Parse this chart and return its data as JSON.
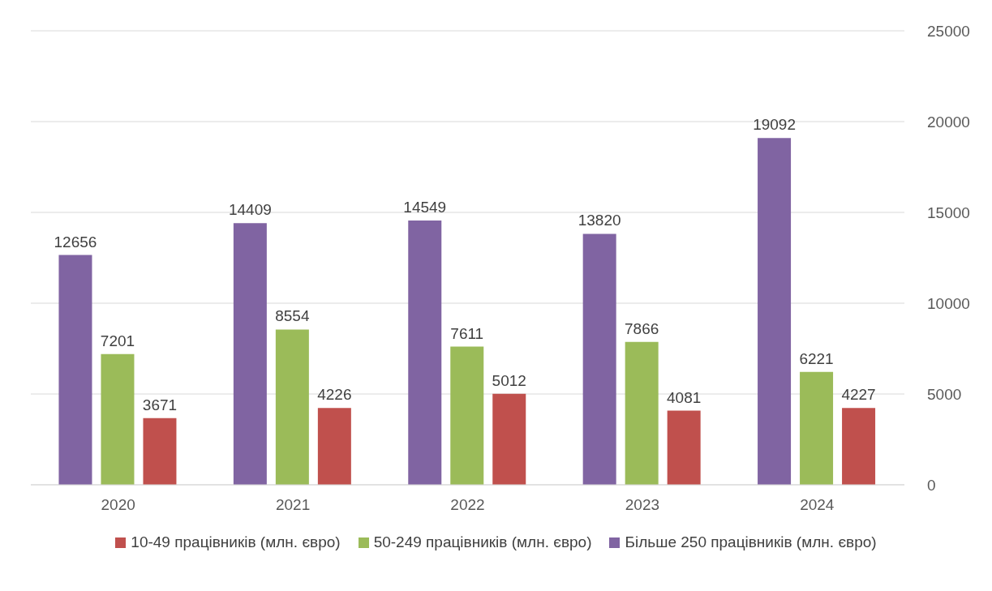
{
  "chart_data": {
    "type": "bar",
    "categories": [
      "2020",
      "2021",
      "2022",
      "2023",
      "2024"
    ],
    "series": [
      {
        "name": "Більше 250 працівників (млн. євро)",
        "color": "#8064a2",
        "values": [
          12656,
          14409,
          14549,
          13820,
          19092
        ]
      },
      {
        "name": "50-249 працівників (млн. євро)",
        "color": "#9bbb59",
        "values": [
          7201,
          8554,
          7611,
          7866,
          6221
        ]
      },
      {
        "name": "10-49 працівників (млн. євро)",
        "color": "#c0504d",
        "values": [
          3671,
          4226,
          5012,
          4081,
          4227
        ]
      }
    ],
    "ylim": [
      0,
      25000
    ],
    "yticks": [
      0,
      5000,
      10000,
      15000,
      20000,
      25000
    ],
    "grid": "y",
    "legend": "bottom",
    "data_labels": true
  }
}
